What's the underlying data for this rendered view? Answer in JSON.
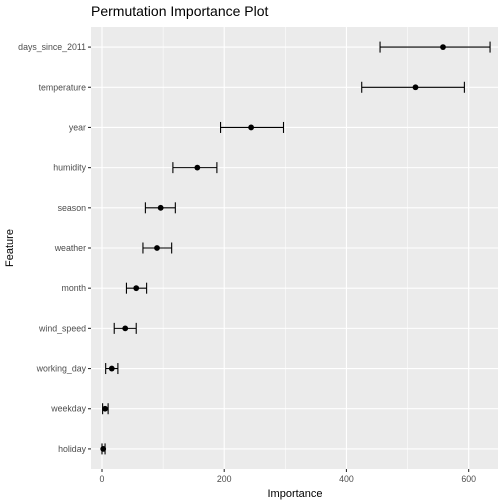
{
  "chart_data": {
    "type": "scatter",
    "title": "Permutation Importance Plot",
    "xlabel": "Importance",
    "ylabel": "Feature",
    "xlim": [
      -18,
      648
    ],
    "x_ticks": [
      0,
      200,
      400,
      600
    ],
    "grid": true,
    "categories": [
      "days_since_2011",
      "temperature",
      "year",
      "humidity",
      "season",
      "weather",
      "month",
      "wind_speed",
      "working_day",
      "weekday",
      "holiday"
    ],
    "points": [
      {
        "feature": "days_since_2011",
        "importance": 558,
        "lower": 455,
        "upper": 635
      },
      {
        "feature": "temperature",
        "importance": 513,
        "lower": 425,
        "upper": 593
      },
      {
        "feature": "year",
        "importance": 244,
        "lower": 194,
        "upper": 297
      },
      {
        "feature": "humidity",
        "importance": 156,
        "lower": 116,
        "upper": 188
      },
      {
        "feature": "season",
        "importance": 96,
        "lower": 71,
        "upper": 120
      },
      {
        "feature": "weather",
        "importance": 90,
        "lower": 67,
        "upper": 114
      },
      {
        "feature": "month",
        "importance": 56,
        "lower": 40,
        "upper": 73
      },
      {
        "feature": "wind_speed",
        "importance": 38,
        "lower": 20,
        "upper": 56
      },
      {
        "feature": "working_day",
        "importance": 16,
        "lower": 6,
        "upper": 26
      },
      {
        "feature": "weekday",
        "importance": 5,
        "lower": 1,
        "upper": 10
      },
      {
        "feature": "holiday",
        "importance": 2,
        "lower": 0,
        "upper": 5
      }
    ],
    "colors": {
      "panel": "#ebebeb",
      "grid_major": "#ffffff",
      "marks": "#000000",
      "tick_text": "#4d4d4d",
      "tick_mark": "#333333"
    }
  }
}
